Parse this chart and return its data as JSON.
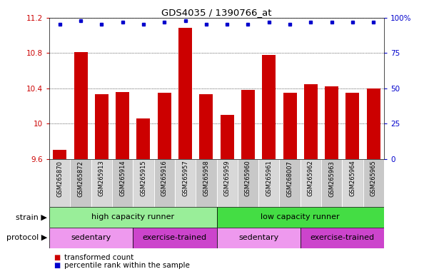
{
  "title": "GDS4035 / 1390766_at",
  "samples": [
    "GSM265870",
    "GSM265872",
    "GSM265913",
    "GSM265914",
    "GSM265915",
    "GSM265916",
    "GSM265957",
    "GSM265958",
    "GSM265959",
    "GSM265960",
    "GSM265961",
    "GSM268007",
    "GSM265962",
    "GSM265963",
    "GSM265964",
    "GSM265965"
  ],
  "bar_values": [
    9.7,
    10.81,
    10.33,
    10.36,
    10.06,
    10.35,
    11.09,
    10.33,
    10.1,
    10.38,
    10.78,
    10.35,
    10.45,
    10.42,
    10.35,
    10.4
  ],
  "percentile_y_data": [
    11.13,
    11.17,
    11.13,
    11.15,
    11.13,
    11.15,
    11.17,
    11.13,
    11.13,
    11.13,
    11.15,
    11.13,
    11.15,
    11.15,
    11.15,
    11.15
  ],
  "ylim": [
    9.6,
    11.2
  ],
  "yticks_left": [
    9.6,
    10.0,
    10.4,
    10.8,
    11.2
  ],
  "yticks_left_labels": [
    "9.6",
    "10",
    "10.4",
    "10.8",
    "11.2"
  ],
  "yticks_right": [
    0,
    25,
    50,
    75,
    100
  ],
  "yticks_right_labels": [
    "0",
    "25",
    "50",
    "75",
    "100%"
  ],
  "bar_color": "#cc0000",
  "dot_color": "#0000cc",
  "strain_groups": [
    {
      "label": "high capacity runner",
      "start": 0,
      "end": 8,
      "color": "#99ee99"
    },
    {
      "label": "low capacity runner",
      "start": 8,
      "end": 16,
      "color": "#44dd44"
    }
  ],
  "protocol_groups": [
    {
      "label": "sedentary",
      "start": 0,
      "end": 4,
      "color": "#ee99ee"
    },
    {
      "label": "exercise-trained",
      "start": 4,
      "end": 8,
      "color": "#cc44cc"
    },
    {
      "label": "sedentary",
      "start": 8,
      "end": 12,
      "color": "#ee99ee"
    },
    {
      "label": "exercise-trained",
      "start": 12,
      "end": 16,
      "color": "#cc44cc"
    }
  ],
  "legend_bar_label": "transformed count",
  "legend_dot_label": "percentile rank within the sample",
  "strain_label": "strain",
  "protocol_label": "protocol",
  "bg_color": "#ffffff",
  "plot_bg_color": "#ffffff",
  "label_col_colors": [
    "#d8d8d8",
    "#c8c8c8"
  ],
  "n_samples": 16
}
